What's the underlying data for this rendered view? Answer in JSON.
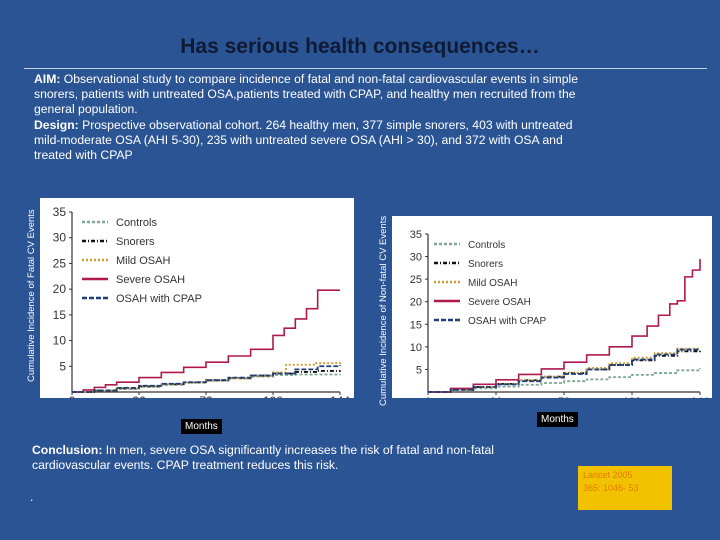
{
  "slide": {
    "title": "Has serious health consequences…"
  },
  "aim": {
    "aim_label": "AIM:",
    "aim_text": " Observational study to compare incidence of fatal and non-fatal cardiovascular events in simple snorers, patients with untreated OSA,patients treated with CPAP, and healthy men recruited from the general population.",
    "design_label": "Design:",
    "design_text": " Prospective observational cohort.  264 healthy men, 377 simple snorers, 403 with untreated mild-moderate OSA (AHI 5-30), 235 with untreated severe OSA (AHI > 30), and 372 with OSA and treated with CPAP"
  },
  "conclusion": {
    "label": "Conclusion:",
    "text": " In men, severe OSA significantly increases the risk of fatal and non-fatal cardiovascular events. CPAP treatment reduces this risk."
  },
  "footer": {
    "dot": "."
  },
  "citation": {
    "line1": "Lancet 2005",
    "line2": "365: 1046- 53"
  },
  "colors": {
    "background": "#2b5494",
    "controls": "#7fa892",
    "snorers": "#111111",
    "mild": "#d09a2c",
    "severe": "#b0194e",
    "cpap": "#1e3f7a",
    "citation_bg": "#f2c200"
  },
  "chart_data": [
    {
      "type": "line",
      "title": "",
      "ylabel": "Cumulative Incidence of Fatal CV Events",
      "xlabel": "Months",
      "x_ticks": [
        "0",
        "36",
        "72",
        "108",
        "144"
      ],
      "y_ticks": [
        "0",
        "5",
        "10",
        "15",
        "20",
        "25",
        "30",
        "35"
      ],
      "xlim": [
        0,
        144
      ],
      "ylim": [
        0,
        35
      ],
      "legend": [
        "Controls",
        "Snorers",
        "Mild OSAH",
        "Severe OSAH",
        "OSAH with CPAP"
      ],
      "series": [
        {
          "name": "Controls",
          "key": "controls",
          "dash": "3,2",
          "points": [
            [
              0,
              0
            ],
            [
              12,
              0.3
            ],
            [
              24,
              0.6
            ],
            [
              36,
              1
            ],
            [
              48,
              1.4
            ],
            [
              60,
              1.8
            ],
            [
              72,
              2.2
            ],
            [
              84,
              2.6
            ],
            [
              96,
              3
            ],
            [
              108,
              3.3
            ],
            [
              120,
              3.4
            ],
            [
              132,
              3.4
            ],
            [
              144,
              3.5
            ]
          ]
        },
        {
          "name": "Snorers",
          "key": "snorers",
          "dash": "4,2,1,2",
          "points": [
            [
              0,
              0
            ],
            [
              12,
              0.3
            ],
            [
              24,
              0.7
            ],
            [
              36,
              1.1
            ],
            [
              48,
              1.5
            ],
            [
              60,
              1.9
            ],
            [
              72,
              2.3
            ],
            [
              84,
              2.7
            ],
            [
              96,
              3.2
            ],
            [
              108,
              3.6
            ],
            [
              120,
              3.9
            ],
            [
              132,
              4.1
            ],
            [
              144,
              4.2
            ]
          ]
        },
        {
          "name": "Mild OSAH",
          "key": "mild",
          "dash": "2,2",
          "points": [
            [
              0,
              0
            ],
            [
              12,
              0.3
            ],
            [
              24,
              0.7
            ],
            [
              36,
              1.1
            ],
            [
              48,
              1.5
            ],
            [
              60,
              1.8
            ],
            [
              72,
              2.2
            ],
            [
              84,
              2.6
            ],
            [
              96,
              3.1
            ],
            [
              108,
              3.8
            ],
            [
              115,
              5.3
            ],
            [
              130,
              5.6
            ],
            [
              144,
              5.8
            ]
          ]
        },
        {
          "name": "Severe OSAH",
          "key": "severe",
          "dash": "",
          "points": [
            [
              0,
              0
            ],
            [
              6,
              0.4
            ],
            [
              12,
              0.9
            ],
            [
              18,
              1.4
            ],
            [
              24,
              1.9
            ],
            [
              36,
              2.8
            ],
            [
              48,
              3.8
            ],
            [
              60,
              4.8
            ],
            [
              72,
              5.8
            ],
            [
              84,
              7
            ],
            [
              96,
              8.3
            ],
            [
              108,
              11
            ],
            [
              114,
              12.4
            ],
            [
              120,
              14.2
            ],
            [
              126,
              16.2
            ],
            [
              132,
              19.8
            ],
            [
              138,
              19.8
            ],
            [
              144,
              19.8
            ]
          ]
        },
        {
          "name": "OSAH with CPAP",
          "key": "cpap",
          "dash": "5,2",
          "points": [
            [
              0,
              0
            ],
            [
              12,
              0.3
            ],
            [
              24,
              0.8
            ],
            [
              36,
              1.2
            ],
            [
              48,
              1.6
            ],
            [
              60,
              1.9
            ],
            [
              72,
              2.3
            ],
            [
              84,
              2.8
            ],
            [
              96,
              3.2
            ],
            [
              108,
              3.6
            ],
            [
              120,
              4.4
            ],
            [
              132,
              5
            ],
            [
              144,
              5.2
            ]
          ]
        }
      ]
    },
    {
      "type": "line",
      "title": "",
      "ylabel": "Cumulative Incidence of Non-fatal CV Events",
      "xlabel": "Months",
      "x_ticks": [
        "0",
        "36",
        "72",
        "108",
        "144"
      ],
      "y_ticks": [
        "0",
        "5",
        "10",
        "15",
        "20",
        "25",
        "30",
        "35"
      ],
      "xlim": [
        0,
        144
      ],
      "ylim": [
        0,
        35
      ],
      "legend": [
        "Controls",
        "Snorers",
        "Mild OSAH",
        "Severe OSAH",
        "OSAH with CPAP"
      ],
      "series": [
        {
          "name": "Controls",
          "key": "controls",
          "dash": "3,2",
          "points": [
            [
              0,
              0
            ],
            [
              12,
              0.4
            ],
            [
              24,
              0.8
            ],
            [
              36,
              1.2
            ],
            [
              48,
              1.6
            ],
            [
              60,
              2
            ],
            [
              72,
              2.4
            ],
            [
              84,
              2.8
            ],
            [
              96,
              3.3
            ],
            [
              108,
              3.8
            ],
            [
              120,
              4.2
            ],
            [
              132,
              4.8
            ],
            [
              144,
              5.3
            ]
          ]
        },
        {
          "name": "Snorers",
          "key": "snorers",
          "dash": "4,2,1,2",
          "points": [
            [
              0,
              0
            ],
            [
              12,
              0.5
            ],
            [
              24,
              1.1
            ],
            [
              36,
              1.8
            ],
            [
              48,
              2.6
            ],
            [
              60,
              3.4
            ],
            [
              72,
              4.2
            ],
            [
              84,
              5
            ],
            [
              96,
              6
            ],
            [
              108,
              7
            ],
            [
              120,
              8
            ],
            [
              132,
              9
            ],
            [
              144,
              9.5
            ]
          ]
        },
        {
          "name": "Mild OSAH",
          "key": "mild",
          "dash": "2,2",
          "points": [
            [
              0,
              0
            ],
            [
              12,
              0.5
            ],
            [
              24,
              1.1
            ],
            [
              36,
              1.8
            ],
            [
              48,
              2.6
            ],
            [
              60,
              3.4
            ],
            [
              72,
              4.3
            ],
            [
              84,
              5.3
            ],
            [
              96,
              6.4
            ],
            [
              108,
              7.6
            ],
            [
              120,
              8.6
            ],
            [
              132,
              9.6
            ],
            [
              144,
              9.7
            ]
          ]
        },
        {
          "name": "Severe OSAH",
          "key": "severe",
          "dash": "",
          "points": [
            [
              0,
              0
            ],
            [
              12,
              0.8
            ],
            [
              24,
              1.7
            ],
            [
              36,
              2.7
            ],
            [
              48,
              3.9
            ],
            [
              60,
              5.1
            ],
            [
              72,
              6.6
            ],
            [
              84,
              8.2
            ],
            [
              96,
              10
            ],
            [
              108,
              12.4
            ],
            [
              116,
              14.6
            ],
            [
              122,
              17
            ],
            [
              128,
              19.5
            ],
            [
              132,
              20.2
            ],
            [
              136,
              25.5
            ],
            [
              140,
              27
            ],
            [
              144,
              29.5
            ]
          ]
        },
        {
          "name": "OSAH with CPAP",
          "key": "cpap",
          "dash": "5,2",
          "points": [
            [
              0,
              0
            ],
            [
              12,
              0.5
            ],
            [
              24,
              1.1
            ],
            [
              36,
              1.7
            ],
            [
              48,
              2.4
            ],
            [
              60,
              3.2
            ],
            [
              72,
              4
            ],
            [
              84,
              5
            ],
            [
              96,
              6
            ],
            [
              108,
              7.2
            ],
            [
              120,
              8.3
            ],
            [
              132,
              9.4
            ],
            [
              144,
              9.5
            ]
          ]
        }
      ]
    }
  ]
}
